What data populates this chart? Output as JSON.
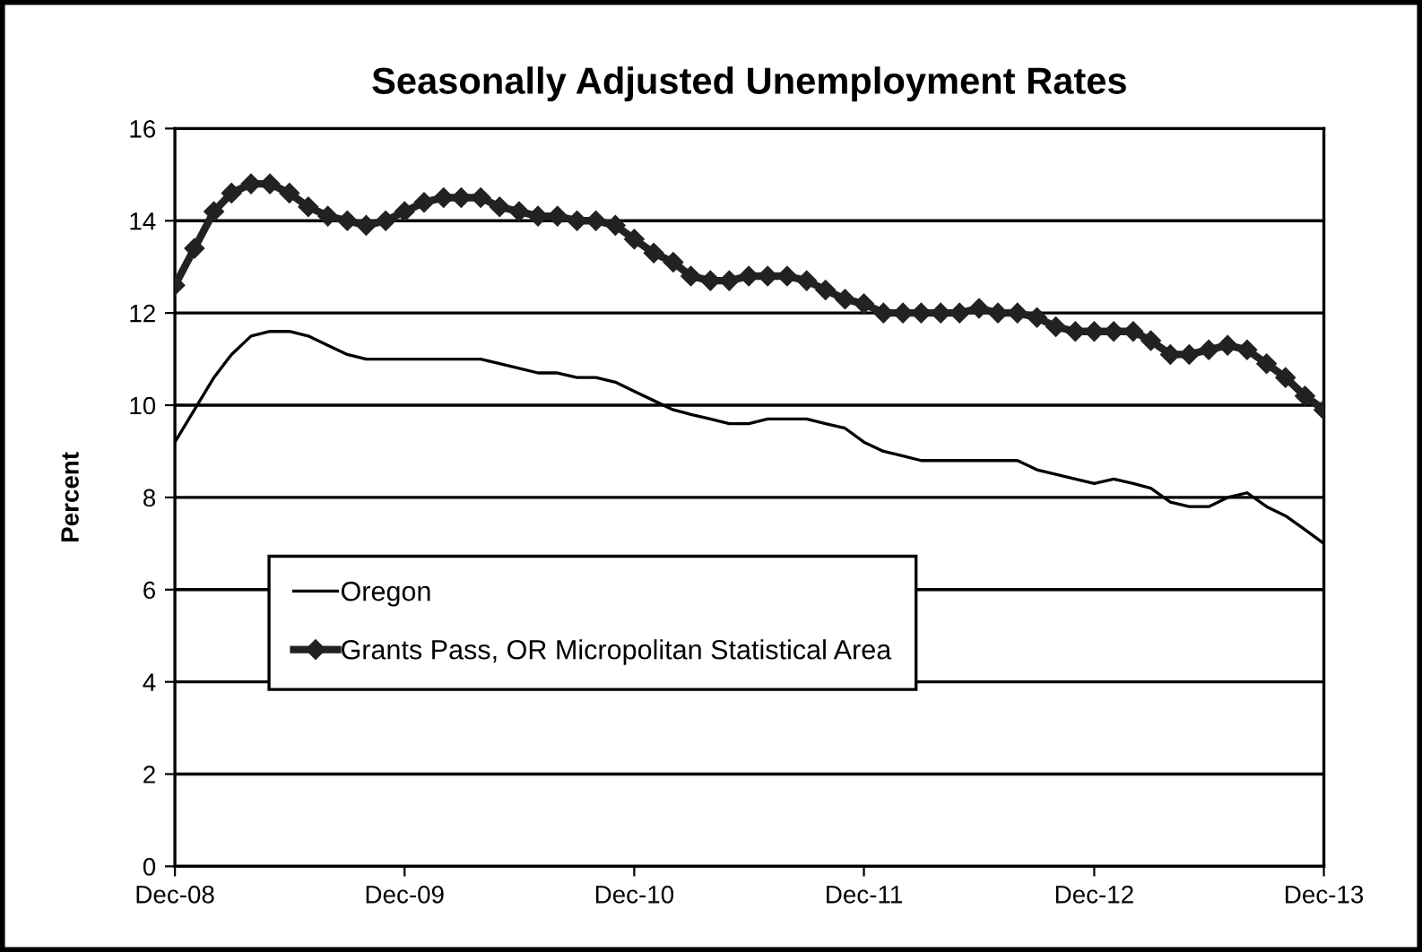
{
  "chart_data": {
    "type": "line",
    "title": "Seasonally Adjusted Unemployment Rates",
    "ylabel": "Percent",
    "x": [
      "2008-12",
      "2009-01",
      "2009-02",
      "2009-03",
      "2009-04",
      "2009-05",
      "2009-06",
      "2009-07",
      "2009-08",
      "2009-09",
      "2009-10",
      "2009-11",
      "2009-12",
      "2010-01",
      "2010-02",
      "2010-03",
      "2010-04",
      "2010-05",
      "2010-06",
      "2010-07",
      "2010-08",
      "2010-09",
      "2010-10",
      "2010-11",
      "2010-12",
      "2011-01",
      "2011-02",
      "2011-03",
      "2011-04",
      "2011-05",
      "2011-06",
      "2011-07",
      "2011-08",
      "2011-09",
      "2011-10",
      "2011-11",
      "2011-12",
      "2012-01",
      "2012-02",
      "2012-03",
      "2012-04",
      "2012-05",
      "2012-06",
      "2012-07",
      "2012-08",
      "2012-09",
      "2012-10",
      "2012-11",
      "2012-12",
      "2013-01",
      "2013-02",
      "2013-03",
      "2013-04",
      "2013-05",
      "2013-06",
      "2013-07",
      "2013-08",
      "2013-09",
      "2013-10",
      "2013-11",
      "2013-12"
    ],
    "series": [
      {
        "name": "Oregon",
        "color": "#000000",
        "marker": "none",
        "values": [
          9.2,
          9.9,
          10.6,
          11.1,
          11.5,
          11.6,
          11.6,
          11.5,
          11.3,
          11.1,
          11.0,
          11.0,
          11.0,
          11.0,
          11.0,
          11.0,
          11.0,
          10.9,
          10.8,
          10.7,
          10.7,
          10.6,
          10.6,
          10.5,
          10.3,
          10.1,
          9.9,
          9.8,
          9.7,
          9.6,
          9.6,
          9.7,
          9.7,
          9.7,
          9.6,
          9.5,
          9.2,
          9.0,
          8.9,
          8.8,
          8.8,
          8.8,
          8.8,
          8.8,
          8.8,
          8.6,
          8.5,
          8.4,
          8.3,
          8.4,
          8.3,
          8.2,
          7.9,
          7.8,
          7.8,
          8.0,
          8.1,
          7.8,
          7.6,
          7.3,
          7.0
        ]
      },
      {
        "name": "Grants Pass, OR Micropolitan Statistical Area",
        "color": "#222222",
        "marker": "diamond",
        "values": [
          12.6,
          13.4,
          14.2,
          14.6,
          14.8,
          14.8,
          14.6,
          14.3,
          14.1,
          14.0,
          13.9,
          14.0,
          14.2,
          14.4,
          14.5,
          14.5,
          14.5,
          14.3,
          14.2,
          14.1,
          14.1,
          14.0,
          14.0,
          13.9,
          13.6,
          13.3,
          13.1,
          12.8,
          12.7,
          12.7,
          12.8,
          12.8,
          12.8,
          12.7,
          12.5,
          12.3,
          12.2,
          12.0,
          12.0,
          12.0,
          12.0,
          12.0,
          12.1,
          12.0,
          12.0,
          11.9,
          11.7,
          11.6,
          11.6,
          11.6,
          11.6,
          11.4,
          11.1,
          11.1,
          11.2,
          11.3,
          11.2,
          10.9,
          10.6,
          10.2,
          9.9
        ]
      }
    ],
    "xlim": [
      "2008-12",
      "2013-12"
    ],
    "xticks": [
      {
        "value": "2008-12",
        "label": "Dec-08"
      },
      {
        "value": "2009-12",
        "label": "Dec-09"
      },
      {
        "value": "2010-12",
        "label": "Dec-10"
      },
      {
        "value": "2011-12",
        "label": "Dec-11"
      },
      {
        "value": "2012-12",
        "label": "Dec-12"
      },
      {
        "value": "2013-12",
        "label": "Dec-13"
      }
    ],
    "ylim": [
      0,
      16
    ],
    "yticks": [
      0,
      2,
      4,
      6,
      8,
      10,
      12,
      14,
      16
    ],
    "grid": "y",
    "legend": "left",
    "line_style": "solid"
  }
}
